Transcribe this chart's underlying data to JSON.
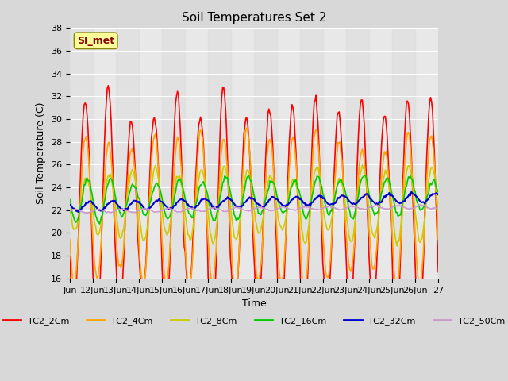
{
  "title": "Soil Temperatures Set 2",
  "xlabel": "Time",
  "ylabel": "Soil Temperature (C)",
  "ylim": [
    16,
    38
  ],
  "yticks": [
    16,
    18,
    20,
    22,
    24,
    26,
    28,
    30,
    32,
    34,
    36,
    38
  ],
  "annotation_text": "SI_met",
  "annotation_color": "#8B0000",
  "annotation_bg": "#FFFF99",
  "series": [
    {
      "label": "TC2_2Cm",
      "color": "#FF0000",
      "lw": 1.2
    },
    {
      "label": "TC2_4Cm",
      "color": "#FFA500",
      "lw": 1.2
    },
    {
      "label": "TC2_8Cm",
      "color": "#CCCC00",
      "lw": 1.2
    },
    {
      "label": "TC2_16Cm",
      "color": "#00CC00",
      "lw": 1.2
    },
    {
      "label": "TC2_32Cm",
      "color": "#0000CC",
      "lw": 1.5
    },
    {
      "label": "TC2_50Cm",
      "color": "#CC99CC",
      "lw": 1.2
    }
  ],
  "x_tick_labels": [
    "Jun",
    "12Jun",
    "13Jun",
    "14Jun",
    "15Jun",
    "16Jun",
    "17Jun",
    "18Jun",
    "19Jun",
    "20Jun",
    "21Jun",
    "22Jun",
    "23Jun",
    "24Jun",
    "25Jun",
    "26Jun",
    "27"
  ],
  "n_days": 16,
  "pts_per_day": 24
}
